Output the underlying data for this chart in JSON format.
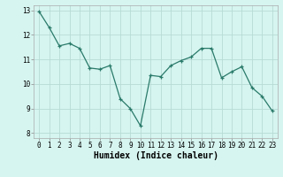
{
  "x": [
    0,
    1,
    2,
    3,
    4,
    5,
    6,
    7,
    8,
    9,
    10,
    11,
    12,
    13,
    14,
    15,
    16,
    17,
    18,
    19,
    20,
    21,
    22,
    23
  ],
  "y": [
    12.95,
    12.3,
    11.55,
    11.65,
    11.45,
    10.65,
    10.6,
    10.75,
    9.4,
    9.0,
    8.3,
    10.35,
    10.3,
    10.75,
    10.95,
    11.1,
    11.45,
    11.45,
    10.25,
    10.5,
    10.7,
    9.85,
    9.5,
    8.9
  ],
  "title": "",
  "xlabel": "Humidex (Indice chaleur)",
  "ylabel": "",
  "xlim": [
    -0.5,
    23.5
  ],
  "ylim": [
    7.8,
    13.2
  ],
  "yticks": [
    8,
    9,
    10,
    11,
    12,
    13
  ],
  "xticks": [
    0,
    1,
    2,
    3,
    4,
    5,
    6,
    7,
    8,
    9,
    10,
    11,
    12,
    13,
    14,
    15,
    16,
    17,
    18,
    19,
    20,
    21,
    22,
    23
  ],
  "line_color": "#2a7a6a",
  "marker_color": "#2a7a6a",
  "bg_color": "#d6f5f0",
  "grid_color": "#b8dbd6",
  "tick_label_size": 5.5,
  "xlabel_size": 7.0
}
